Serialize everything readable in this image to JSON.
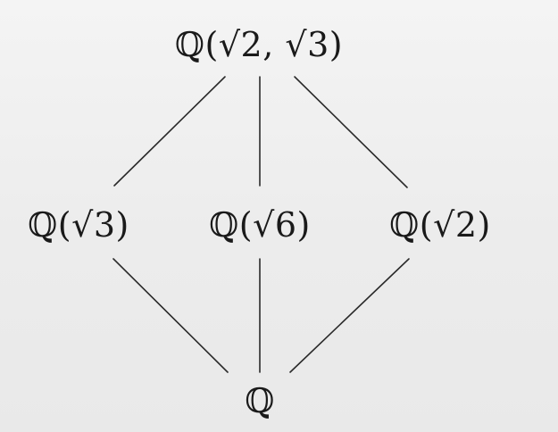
{
  "nodes": {
    "top": "ℚ(√2, √3)",
    "left": "ℚ(√3)",
    "middle": "ℚ(√6)",
    "right": "ℚ(√2)",
    "bottom": "ℚ"
  },
  "edges": [
    {
      "from": "top",
      "to": "left"
    },
    {
      "from": "top",
      "to": "middle"
    },
    {
      "from": "top",
      "to": "right"
    },
    {
      "from": "left",
      "to": "bottom"
    },
    {
      "from": "middle",
      "to": "bottom"
    },
    {
      "from": "right",
      "to": "bottom"
    }
  ]
}
